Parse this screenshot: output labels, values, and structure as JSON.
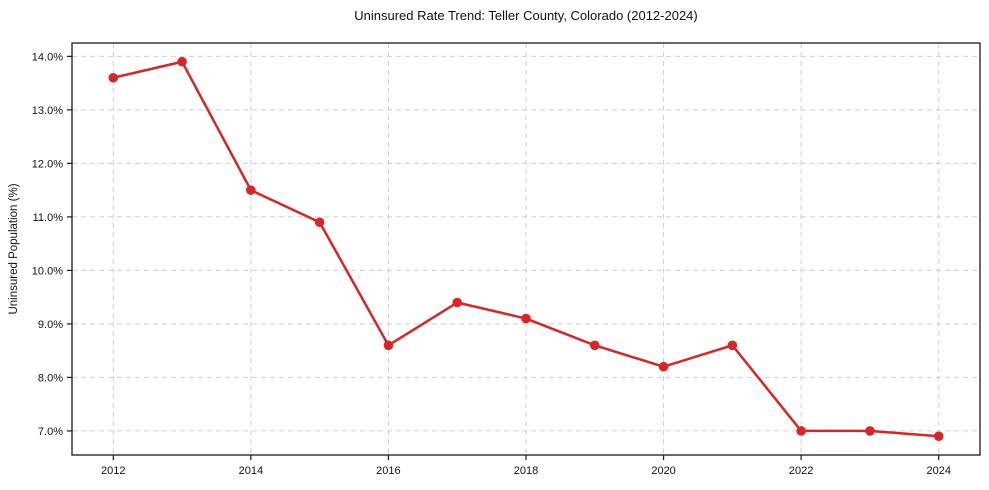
{
  "chart_data": {
    "type": "line",
    "title": "Uninsured Rate Trend: Teller County, Colorado (2012-2024)",
    "xlabel": "",
    "ylabel": "Uninsured Population (%)",
    "x": [
      2012,
      2013,
      2014,
      2015,
      2016,
      2017,
      2018,
      2019,
      2020,
      2021,
      2022,
      2023,
      2024
    ],
    "series": [
      {
        "name": "Uninsured Rate",
        "values": [
          13.6,
          13.9,
          11.5,
          10.9,
          8.6,
          9.4,
          9.1,
          8.6,
          8.2,
          8.6,
          7.0,
          7.0,
          6.9
        ]
      }
    ],
    "xlim": [
      2011.4,
      2024.6
    ],
    "ylim": [
      6.55,
      14.25
    ],
    "x_ticks": [
      2012,
      2014,
      2016,
      2018,
      2020,
      2022,
      2024
    ],
    "y_ticks": [
      7.0,
      8.0,
      9.0,
      10.0,
      11.0,
      12.0,
      13.0,
      14.0
    ],
    "y_tick_suffix": "%",
    "grid": true,
    "legend": "none",
    "colors": {
      "line": "#d62728",
      "marker": "#d62728",
      "grid": "#cfcfcf",
      "spine": "#1a1a1a",
      "text": "#111111",
      "background": "#ffffff"
    }
  }
}
